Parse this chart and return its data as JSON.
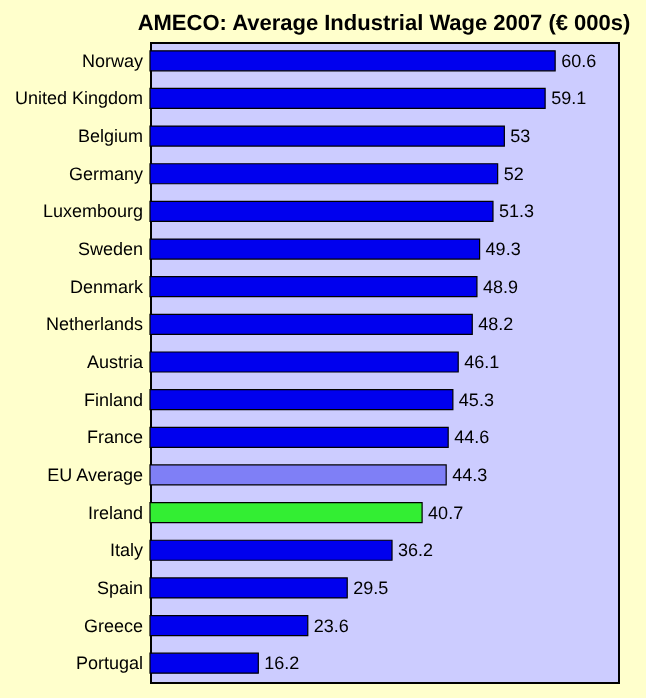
{
  "chart_data": {
    "type": "bar",
    "orientation": "horizontal",
    "title": "AMECO:  Average Industrial Wage 2007 (€ 000s)",
    "categories": [
      "Norway",
      "United Kingdom",
      "Belgium",
      "Germany",
      "Luxembourg",
      "Sweden",
      "Denmark",
      "Netherlands",
      "Austria",
      "Finland",
      "France",
      "EU Average",
      "Ireland",
      "Italy",
      "Spain",
      "Greece",
      "Portugal"
    ],
    "values": [
      60.6,
      59.1,
      53,
      52,
      51.3,
      49.3,
      48.9,
      48.2,
      46.1,
      45.3,
      44.6,
      44.3,
      40.7,
      36.2,
      29.5,
      23.6,
      16.2
    ],
    "colors": [
      "#0000ee",
      "#0000ee",
      "#0000ee",
      "#0000ee",
      "#0000ee",
      "#0000ee",
      "#0000ee",
      "#0000ee",
      "#0000ee",
      "#0000ee",
      "#0000ee",
      "#7f7ff6",
      "#33ee33",
      "#0000ee",
      "#0000ee",
      "#0000ee",
      "#0000ee"
    ],
    "data_labels": true,
    "grid": false
  }
}
